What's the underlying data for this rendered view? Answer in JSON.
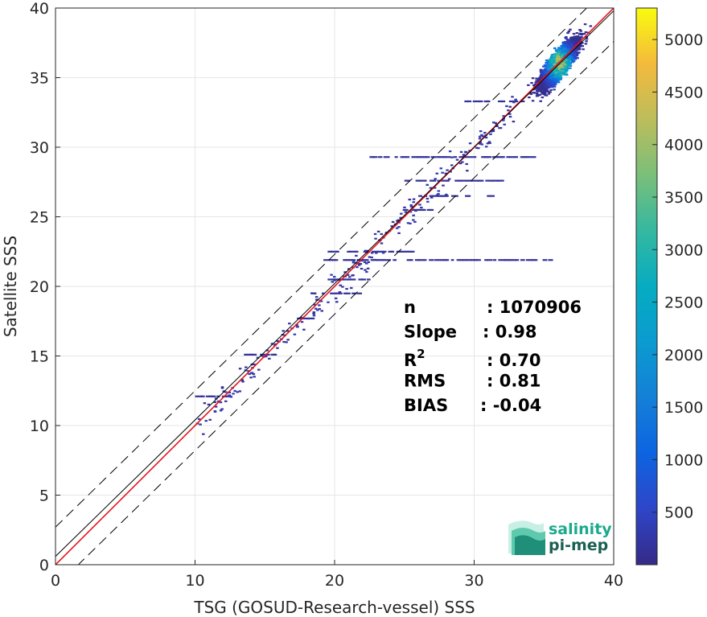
{
  "chart_data": {
    "type": "heatmap",
    "xlabel": "TSG (GOSUD-Research-vessel) SSS",
    "ylabel": "Satellite SSS",
    "xlim": [
      0,
      40
    ],
    "ylim": [
      0,
      40
    ],
    "xticks": [
      0,
      10,
      20,
      30,
      40
    ],
    "yticks": [
      0,
      5,
      10,
      15,
      20,
      25,
      30,
      35,
      40
    ],
    "grid": true,
    "colorbar": {
      "min": 0,
      "max": 5300,
      "ticks": [
        500,
        1000,
        1500,
        2000,
        2500,
        3000,
        3500,
        4000,
        4500,
        5000
      ],
      "colormap": "parula"
    },
    "lines": [
      {
        "kind": "regression",
        "color": "#e4151c",
        "intercept": 0.0,
        "slope": 1.0
      },
      {
        "kind": "identity",
        "color": "#000000",
        "intercept": 0.6,
        "slope": 0.98
      },
      {
        "kind": "upper-bound",
        "color": "#000000",
        "style": "dashed",
        "intercept": 2.7,
        "slope": 0.98
      },
      {
        "kind": "lower-bound",
        "color": "#000000",
        "style": "dashed",
        "intercept": -1.6,
        "slope": 0.98
      }
    ],
    "density_cluster": {
      "center": [
        36,
        36
      ],
      "x_range": [
        31,
        38.5
      ],
      "y_range": [
        31,
        40
      ],
      "peak_count": 5300
    },
    "scatter_streaks": [
      {
        "y": 12.1,
        "x": [
          10,
          12.5
        ]
      },
      {
        "y": 15.1,
        "x": [
          13.5,
          15.8
        ]
      },
      {
        "y": 17.7,
        "x": [
          17.3,
          18.5
        ]
      },
      {
        "y": 19.5,
        "x": [
          18.3,
          21.8
        ]
      },
      {
        "y": 20.5,
        "x": [
          19.5,
          22.5
        ]
      },
      {
        "y": 21.9,
        "x": [
          19.2,
          35.5
        ]
      },
      {
        "y": 22.5,
        "x": [
          19.5,
          26
        ]
      },
      {
        "y": 25.5,
        "x": [
          24.5,
          27
        ]
      },
      {
        "y": 26.5,
        "x": [
          26,
          31.5
        ]
      },
      {
        "y": 27.6,
        "x": [
          25,
          32
        ]
      },
      {
        "y": 29.3,
        "x": [
          22.5,
          34.5
        ]
      },
      {
        "y": 33.3,
        "x": [
          29.3,
          33.5
        ]
      }
    ],
    "stats": [
      {
        "label": "n",
        "value": ": 1070906"
      },
      {
        "label": "Slope",
        "value": ": 0.98"
      },
      {
        "label": "R",
        "sup": "2",
        "value": ": 0.70"
      },
      {
        "label": "RMS",
        "value": ": 0.81"
      },
      {
        "label": "BIAS",
        "value": ": -0.04"
      }
    ]
  },
  "logo": {
    "line1": "salinity",
    "line2": "pi-mep",
    "color1": "#1aaa8c",
    "color2": "#1a5f52"
  }
}
